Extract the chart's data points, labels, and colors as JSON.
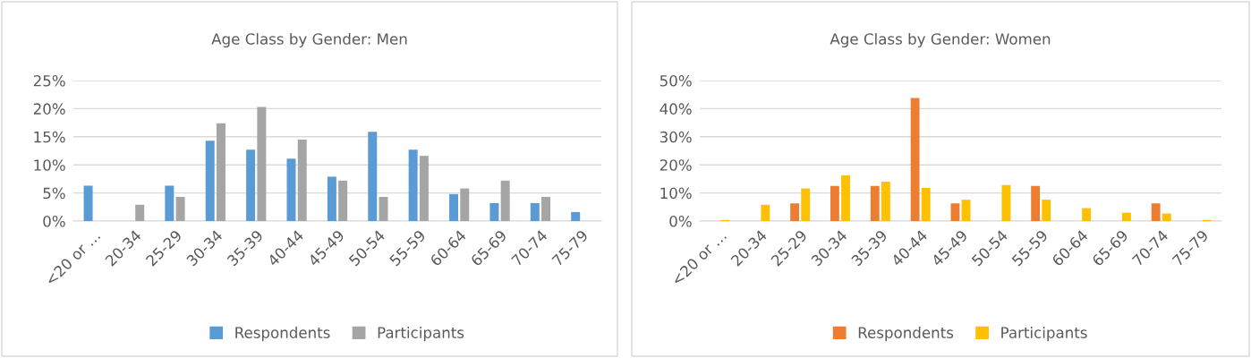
{
  "chart_data": [
    {
      "type": "bar",
      "title": "Age Class by Gender: Men",
      "categories": [
        "<20 or …",
        "20-34",
        "25-29",
        "30-34",
        "35-39",
        "40-44",
        "45-49",
        "50-54",
        "55-59",
        "60-64",
        "65-69",
        "70-74",
        "75-79"
      ],
      "series": [
        {
          "name": "Respondents",
          "color": "#5b9bd5",
          "values": [
            6.3,
            0,
            6.3,
            14.3,
            12.7,
            11.1,
            7.9,
            15.9,
            12.7,
            4.8,
            3.2,
            3.2,
            1.6
          ]
        },
        {
          "name": "Participants",
          "color": "#a5a5a5",
          "values": [
            0,
            2.9,
            4.3,
            17.4,
            20.3,
            14.5,
            7.2,
            4.3,
            11.6,
            5.8,
            7.2,
            4.3,
            0
          ]
        }
      ],
      "ylim": [
        0,
        25
      ],
      "yticks": [
        {
          "value": 0,
          "label": "0%"
        },
        {
          "value": 5,
          "label": "5%"
        },
        {
          "value": 10,
          "label": "10%"
        },
        {
          "value": 15,
          "label": "15%"
        },
        {
          "value": 20,
          "label": "20%"
        },
        {
          "value": 25,
          "label": "25%"
        }
      ],
      "grid": "y",
      "legend": "bottom"
    },
    {
      "type": "bar",
      "title": "Age Class by Gender: Women",
      "categories": [
        "<20 or …",
        "20-34",
        "25-29",
        "30-34",
        "35-39",
        "40-44",
        "45-49",
        "50-54",
        "55-59",
        "60-64",
        "65-69",
        "70-74",
        "75-79"
      ],
      "series": [
        {
          "name": "Respondents",
          "color": "#ed7d31",
          "values": [
            0,
            0,
            6.3,
            12.5,
            12.5,
            43.8,
            6.3,
            0,
            12.5,
            0,
            0,
            6.3,
            0
          ]
        },
        {
          "name": "Participants",
          "color": "#ffc000",
          "values": [
            0.4,
            5.8,
            11.6,
            16.3,
            14.0,
            11.8,
            7.6,
            12.8,
            7.6,
            4.6,
            3.0,
            2.7,
            0.4
          ]
        }
      ],
      "ylim": [
        0,
        50
      ],
      "yticks": [
        {
          "value": 0,
          "label": "0%"
        },
        {
          "value": 10,
          "label": "10%"
        },
        {
          "value": 20,
          "label": "20%"
        },
        {
          "value": 30,
          "label": "30%"
        },
        {
          "value": 40,
          "label": "40%"
        },
        {
          "value": 50,
          "label": "50%"
        }
      ],
      "grid": "y",
      "legend": "bottom"
    }
  ]
}
